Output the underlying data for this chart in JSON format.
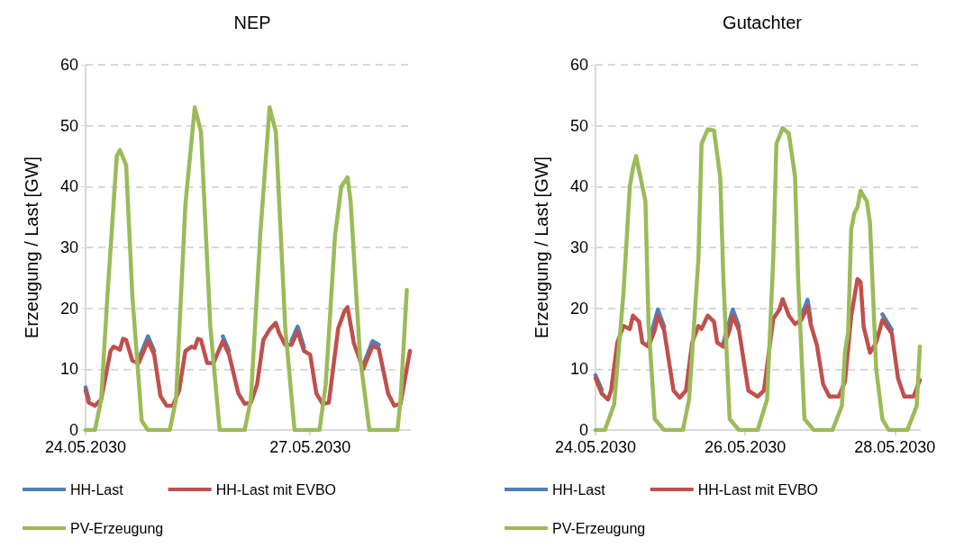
{
  "chart_data": [
    {
      "type": "line",
      "title": "NEP",
      "ylabel": "Erzeugung / Last [GW]",
      "xlim": [
        "2030-05-24T00:00",
        "2030-05-28T08:00"
      ],
      "xticks": [
        {
          "value": "2030-05-24T00:00",
          "label": "24.05.2030"
        },
        {
          "value": "2030-05-27T00:00",
          "label": "27.05.2030"
        }
      ],
      "ylim": [
        0,
        60
      ],
      "yticks": [
        0,
        10,
        20,
        30,
        40,
        50,
        60
      ],
      "grid": "y",
      "legend": "bottom",
      "marker": "none",
      "line_style": "solid",
      "series": [
        {
          "name": "HH-Last",
          "color": "#4f81bd",
          "x": [
            "2030-05-24T00:00",
            "2030-05-24T01:00",
            "2030-05-24T02:00",
            "2030-05-24T17:00",
            "2030-05-24T20:00",
            "2030-05-24T22:00",
            "2030-05-24T23:00",
            "2030-05-25T17:00",
            "2030-05-25T20:00",
            "2030-05-25T22:00",
            "2030-05-25T23:00",
            "2030-05-26T18:00",
            "2030-05-26T20:00",
            "2030-05-26T22:00",
            "2030-05-26T23:00",
            "2030-05-27T17:00",
            "2030-05-27T20:00",
            "2030-05-27T22:00"
          ],
          "values": [
            7,
            5.1,
            null,
            11.6,
            15.4,
            13,
            null,
            null,
            15.4,
            13,
            null,
            14.6,
            17,
            13.6,
            null,
            10.6,
            14.6,
            14
          ]
        },
        {
          "name": "HH-Last mit EVBO",
          "color": "#c0504d",
          "x": [
            "2030-05-24T00:00",
            "2030-05-24T01:00",
            "2030-05-24T03:00",
            "2030-05-24T05:00",
            "2030-05-24T08:00",
            "2030-05-24T09:00",
            "2030-05-24T11:00",
            "2030-05-24T12:00",
            "2030-05-24T13:00",
            "2030-05-24T15:00",
            "2030-05-24T17:00",
            "2030-05-24T20:00",
            "2030-05-24T22:00",
            "2030-05-25T00:00",
            "2030-05-25T02:00",
            "2030-05-25T04:00",
            "2030-05-25T06:00",
            "2030-05-25T08:00",
            "2030-05-25T10:00",
            "2030-05-25T11:00",
            "2030-05-25T12:00",
            "2030-05-25T13:00",
            "2030-05-25T15:00",
            "2030-05-25T17:00",
            "2030-05-25T20:00",
            "2030-05-25T22:00",
            "2030-05-26T01:00",
            "2030-05-26T03:00",
            "2030-05-26T05:00",
            "2030-05-26T07:00",
            "2030-05-26T09:00",
            "2030-05-26T11:00",
            "2030-05-26T13:00",
            "2030-05-26T14:00",
            "2030-05-26T16:00",
            "2030-05-26T18:00",
            "2030-05-26T20:00",
            "2030-05-26T22:00",
            "2030-05-27T00:00",
            "2030-05-27T02:00",
            "2030-05-27T04:00",
            "2030-05-27T06:00",
            "2030-05-27T09:00",
            "2030-05-27T11:00",
            "2030-05-27T12:00",
            "2030-05-27T14:00",
            "2030-05-27T17:00",
            "2030-05-27T20:00",
            "2030-05-27T22:00",
            "2030-05-28T01:00",
            "2030-05-28T03:00",
            "2030-05-28T05:00",
            "2030-05-28T08:00"
          ],
          "values": [
            6.5,
            4.5,
            4,
            5,
            13,
            13.7,
            13.2,
            15,
            14.8,
            11.4,
            11,
            14.6,
            12.4,
            5.6,
            4,
            4,
            6.5,
            13,
            13.7,
            13.5,
            15,
            14.8,
            11,
            11,
            14.6,
            12.4,
            6,
            4.3,
            4.5,
            7.5,
            14.8,
            16.5,
            17.6,
            16,
            14,
            14,
            16.2,
            13,
            12.4,
            6,
            4.3,
            4.5,
            16.7,
            19.5,
            20.2,
            14.3,
            10,
            13.8,
            13.4,
            6,
            4,
            4.3,
            13
          ]
        },
        {
          "name": "PV-Erzeugung",
          "color": "#9bbb59",
          "x": [
            "2030-05-24T00:00",
            "2030-05-24T03:00",
            "2030-05-24T05:00",
            "2030-05-24T07:00",
            "2030-05-24T10:00",
            "2030-05-24T11:00",
            "2030-05-24T13:00",
            "2030-05-24T15:00",
            "2030-05-24T18:00",
            "2030-05-24T20:00",
            "2030-05-25T03:00",
            "2030-05-25T05:00",
            "2030-05-25T08:00",
            "2030-05-25T11:00",
            "2030-05-25T13:00",
            "2030-05-25T16:00",
            "2030-05-25T19:00",
            "2030-05-26T03:00",
            "2030-05-26T05:00",
            "2030-05-26T08:00",
            "2030-05-26T11:00",
            "2030-05-26T13:00",
            "2030-05-26T16:00",
            "2030-05-26T19:00",
            "2030-05-27T03:00",
            "2030-05-27T05:00",
            "2030-05-27T08:00",
            "2030-05-27T10:00",
            "2030-05-27T12:00",
            "2030-05-27T13:00",
            "2030-05-27T16:00",
            "2030-05-27T19:00",
            "2030-05-28T04:00",
            "2030-05-28T05:00",
            "2030-05-28T07:00"
          ],
          "values": [
            0,
            0,
            5,
            22,
            45,
            46,
            43.5,
            22,
            1.5,
            0,
            0,
            5,
            37,
            53,
            49,
            17,
            0,
            0,
            5,
            32,
            53,
            49,
            17,
            0,
            0,
            7.5,
            32,
            40,
            41.5,
            37.5,
            12,
            0,
            0,
            5,
            23
          ]
        }
      ]
    },
    {
      "type": "line",
      "title": "Gutachter",
      "ylabel": "Erzeugung / Last [GW]",
      "xlim": [
        "2030-05-24T00:00",
        "2030-05-28T08:00"
      ],
      "xticks": [
        {
          "value": "2030-05-24T00:00",
          "label": "24.05.2030"
        },
        {
          "value": "2030-05-26T00:00",
          "label": "26.05.2030"
        },
        {
          "value": "2030-05-28T00:00",
          "label": "28.05.2030"
        }
      ],
      "ylim": [
        0,
        60
      ],
      "yticks": [
        0,
        10,
        20,
        30,
        40,
        50,
        60
      ],
      "grid": "y",
      "legend": "bottom",
      "marker": "none",
      "line_style": "solid",
      "series": [
        {
          "name": "HH-Last",
          "color": "#4f81bd",
          "x": [
            "2030-05-24T00:00",
            "2030-05-24T02:00",
            "2030-05-24T03:00",
            "2030-05-24T17:00",
            "2030-05-24T20:00",
            "2030-05-24T22:00",
            "2030-05-24T23:00",
            "2030-05-25T17:00",
            "2030-05-25T20:00",
            "2030-05-25T22:00",
            "2030-05-25T23:00",
            "2030-05-26T18:00",
            "2030-05-26T20:00",
            "2030-05-26T21:00",
            "2030-05-26T22:00",
            "2030-05-27T18:00",
            "2030-05-27T20:00",
            "2030-05-27T23:00"
          ],
          "values": [
            9,
            6.6,
            null,
            14.3,
            19.8,
            17,
            null,
            14.3,
            19.8,
            17,
            null,
            18.7,
            21.4,
            18,
            null,
            null,
            19,
            16.5
          ]
        },
        {
          "name": "HH-Last mit EVBO",
          "color": "#c0504d",
          "x": [
            "2030-05-24T00:00",
            "2030-05-24T02:00",
            "2030-05-24T04:00",
            "2030-05-24T05:00",
            "2030-05-24T07:00",
            "2030-05-24T09:00",
            "2030-05-24T11:00",
            "2030-05-24T12:00",
            "2030-05-24T14:00",
            "2030-05-24T15:00",
            "2030-05-24T17:00",
            "2030-05-24T19:00",
            "2030-05-24T20:00",
            "2030-05-24T22:00",
            "2030-05-25T01:00",
            "2030-05-25T03:00",
            "2030-05-25T05:00",
            "2030-05-25T07:00",
            "2030-05-25T09:00",
            "2030-05-25T10:00",
            "2030-05-25T12:00",
            "2030-05-25T14:00",
            "2030-05-25T15:00",
            "2030-05-25T17:00",
            "2030-05-25T19:00",
            "2030-05-25T20:00",
            "2030-05-25T22:00",
            "2030-05-26T01:00",
            "2030-05-26T04:00",
            "2030-05-26T06:00",
            "2030-05-26T09:00",
            "2030-05-26T11:00",
            "2030-05-26T12:00",
            "2030-05-26T14:00",
            "2030-05-26T16:00",
            "2030-05-26T18:00",
            "2030-05-26T20:00",
            "2030-05-26T21:00",
            "2030-05-26T23:00",
            "2030-05-27T01:00",
            "2030-05-27T03:00",
            "2030-05-27T06:00",
            "2030-05-27T08:00",
            "2030-05-27T10:00",
            "2030-05-27T12:00",
            "2030-05-27T13:00",
            "2030-05-27T14:00",
            "2030-05-27T16:00",
            "2030-05-27T18:00",
            "2030-05-27T20:00",
            "2030-05-27T23:00",
            "2030-05-28T01:00",
            "2030-05-28T03:00",
            "2030-05-28T06:00",
            "2030-05-28T08:00"
          ],
          "values": [
            8.5,
            6,
            5,
            6.5,
            14.4,
            17.1,
            16.6,
            18.8,
            17.8,
            14.4,
            13.7,
            16.4,
            18.8,
            16.4,
            6.5,
            5.3,
            6.5,
            14.4,
            17.1,
            16.6,
            18.8,
            17.8,
            14.4,
            13.7,
            16.4,
            18.8,
            16.4,
            6.5,
            5.5,
            6.5,
            18.3,
            19.8,
            21.5,
            18.8,
            17.4,
            18.1,
            20.3,
            17.4,
            13.9,
            7.5,
            5.5,
            5.5,
            8,
            18.8,
            24.8,
            24.3,
            16.9,
            12.7,
            14.4,
            18.1,
            15.9,
            8.5,
            5.5,
            5.5,
            8.2
          ]
        },
        {
          "name": "PV-Erzeugung",
          "color": "#9bbb59",
          "x": [
            "2030-05-24T00:00",
            "2030-05-24T03:00",
            "2030-05-24T06:00",
            "2030-05-24T09:00",
            "2030-05-24T11:00",
            "2030-05-24T12:00",
            "2030-05-24T13:00",
            "2030-05-24T16:00",
            "2030-05-24T17:00",
            "2030-05-24T19:00",
            "2030-05-24T22:00",
            "2030-05-25T04:00",
            "2030-05-25T06:00",
            "2030-05-25T09:00",
            "2030-05-25T10:00",
            "2030-05-25T12:00",
            "2030-05-25T14:00",
            "2030-05-25T16:00",
            "2030-05-25T17:00",
            "2030-05-25T19:00",
            "2030-05-25T22:00",
            "2030-05-26T04:00",
            "2030-05-26T07:00",
            "2030-05-26T09:00",
            "2030-05-26T10:00",
            "2030-05-26T12:00",
            "2030-05-26T14:00",
            "2030-05-26T16:00",
            "2030-05-26T17:00",
            "2030-05-26T19:00",
            "2030-05-26T22:00",
            "2030-05-27T04:00",
            "2030-05-27T07:00",
            "2030-05-27T08:00",
            "2030-05-27T09:00",
            "2030-05-27T10:00",
            "2030-05-27T11:00",
            "2030-05-27T12:00",
            "2030-05-27T13:00",
            "2030-05-27T15:00",
            "2030-05-27T16:00",
            "2030-05-27T18:00",
            "2030-05-27T20:00",
            "2030-05-27T22:00",
            "2030-05-28T04:00",
            "2030-05-28T07:00",
            "2030-05-28T08:00"
          ],
          "values": [
            0,
            0,
            4.3,
            22.8,
            40,
            43,
            45,
            37.6,
            17.4,
            1.8,
            0,
            0,
            5,
            28.2,
            47,
            49.4,
            49.2,
            41.5,
            24.8,
            1.8,
            0,
            0,
            5,
            28.2,
            47,
            49.6,
            48.7,
            41.5,
            24.3,
            1.8,
            0,
            0,
            4,
            12.9,
            16,
            33,
            35.6,
            36.6,
            39.3,
            37.6,
            34.1,
            10,
            1.8,
            0,
            0,
            4,
            13.7
          ]
        }
      ]
    }
  ]
}
